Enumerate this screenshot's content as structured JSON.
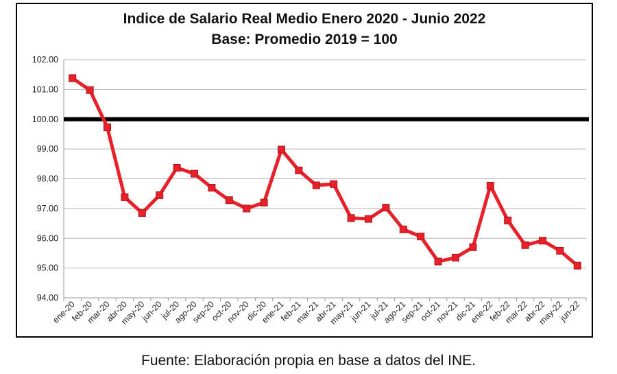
{
  "chart_data": {
    "type": "line",
    "title": "Indice de Salario Real Medio Enero 2020 - Junio 2022",
    "subtitle": "Base: Promedio 2019 = 100",
    "xlabel": "",
    "ylabel": "",
    "ylim": [
      94,
      102
    ],
    "yticks": [
      "94.00",
      "95.00",
      "96.00",
      "97.00",
      "98.00",
      "99.00",
      "100.00",
      "101.00",
      "102.00"
    ],
    "grid": true,
    "categories": [
      "ene-20",
      "feb-20",
      "mar-20",
      "abr-20",
      "may-20",
      "jun-20",
      "jul-20",
      "ago-20",
      "sep-20",
      "oct-20",
      "nov-20",
      "dic-20",
      "ene-21",
      "feb-21",
      "mar-21",
      "abr-21",
      "may-21",
      "jun-21",
      "jul-21",
      "ago-21",
      "sep-21",
      "oct-21",
      "nov-21",
      "dic-21",
      "ene-22",
      "feb-22",
      "mar-22",
      "abr-22",
      "may-22",
      "jun-22"
    ],
    "series": [
      {
        "values": [
          101.38,
          100.98,
          99.73,
          97.38,
          96.85,
          97.45,
          98.37,
          98.17,
          97.7,
          97.28,
          97.0,
          97.2,
          98.98,
          98.28,
          97.78,
          97.82,
          96.68,
          96.65,
          97.03,
          96.3,
          96.06,
          95.22,
          95.35,
          95.7,
          97.77,
          96.6,
          95.77,
          95.92,
          95.58,
          95.08
        ],
        "color": "#e8202a"
      }
    ],
    "reference_line": {
      "value": 100,
      "color": "#000000"
    }
  },
  "source_note": "Fuente: Elaboración propia en base a datos del INE."
}
